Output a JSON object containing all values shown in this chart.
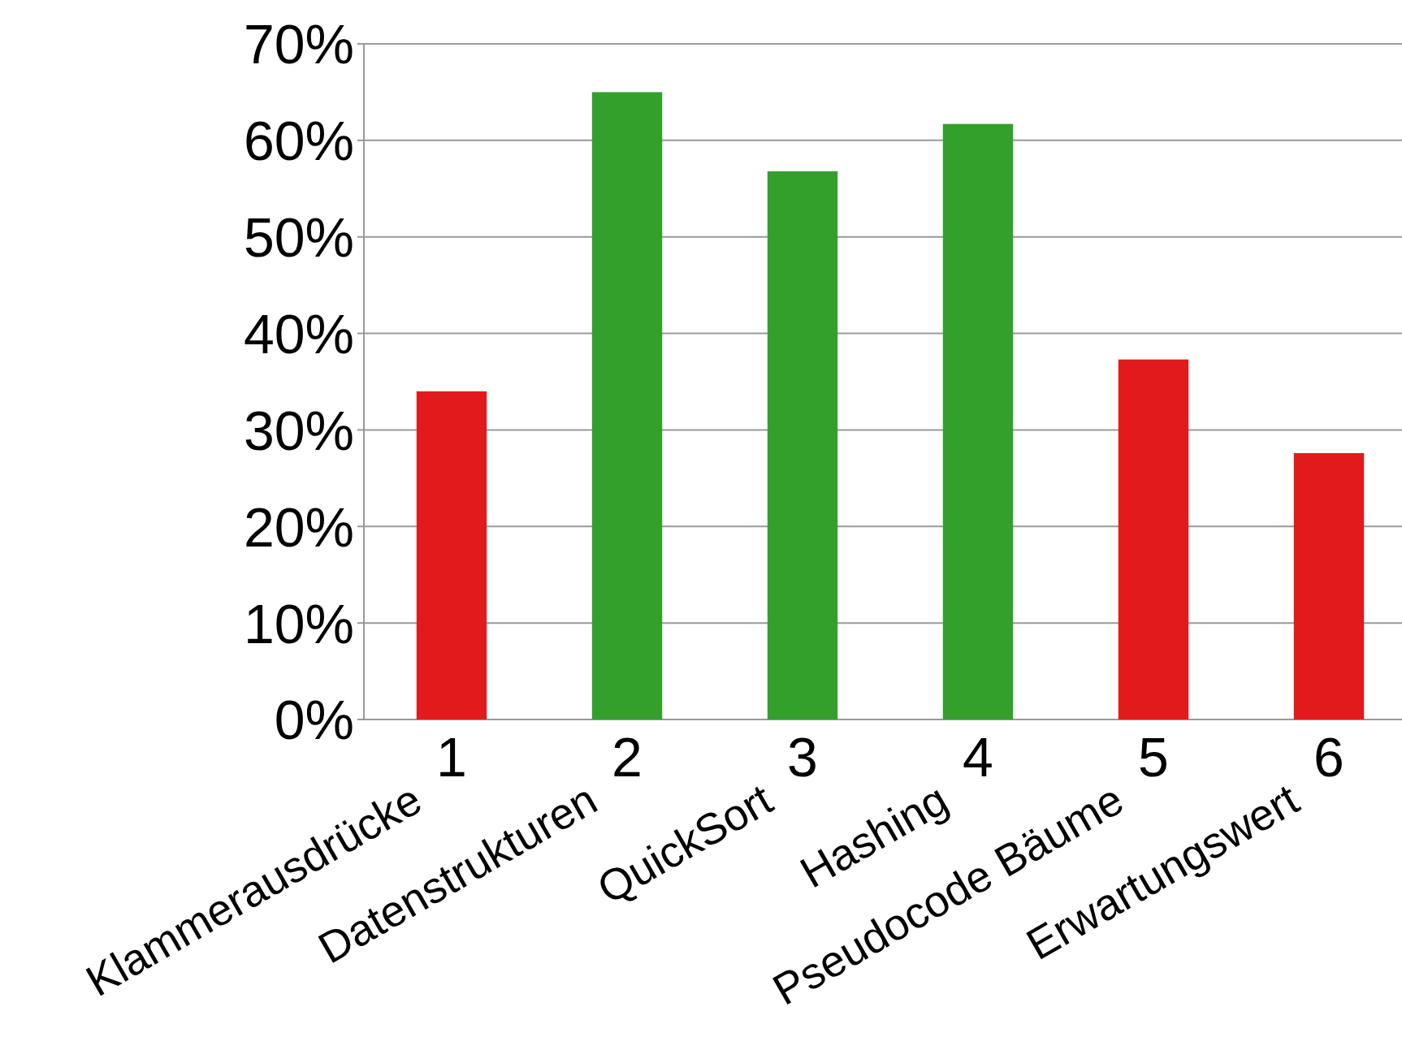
{
  "chart_data": {
    "type": "bar",
    "categories": [
      "1",
      "2",
      "3",
      "4",
      "5",
      "6"
    ],
    "values": [
      34.0,
      65.0,
      56.8,
      61.7,
      37.3,
      27.6
    ],
    "colors": [
      "#e31a1c",
      "#33a02c",
      "#33a02c",
      "#33a02c",
      "#e31a1c",
      "#e31a1c"
    ],
    "ylim": [
      0,
      70
    ],
    "yticks": [
      {
        "value": 0,
        "label": "0%"
      },
      {
        "value": 10,
        "label": "10%"
      },
      {
        "value": 20,
        "label": "20%"
      },
      {
        "value": 30,
        "label": "30%"
      },
      {
        "value": 40,
        "label": "40%"
      },
      {
        "value": 50,
        "label": "50%"
      },
      {
        "value": 60,
        "label": "60%"
      },
      {
        "value": 70,
        "label": "70%"
      }
    ],
    "grid": "y",
    "annotations": [
      "Klammerausdrücke",
      "Datenstrukturen",
      "QuickSort",
      "Hashing",
      "Pseudocode Bäume",
      "Erwartungswert"
    ]
  }
}
